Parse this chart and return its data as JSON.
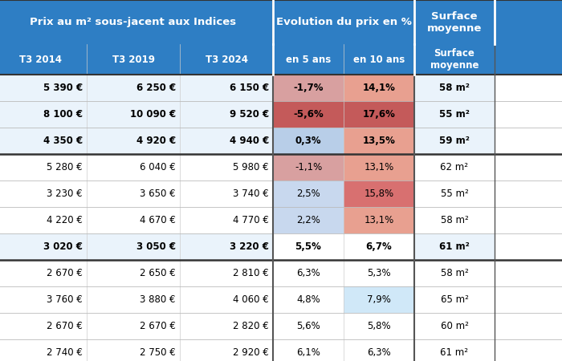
{
  "header1": "Prix au m² sous-jacent aux Indices",
  "header2": "Evolution du prix en %",
  "header3": "Surface\nmoyenne",
  "rows": [
    {
      "prix": [
        "5 390 €",
        "6 250 €",
        "6 150 €"
      ],
      "ev5": "-1,7%",
      "ev10": "14,1%",
      "surface": "58 m²",
      "bold": true
    },
    {
      "prix": [
        "8 100 €",
        "10 090 €",
        "9 520 €"
      ],
      "ev5": "-5,6%",
      "ev10": "17,6%",
      "surface": "55 m²",
      "bold": true
    },
    {
      "prix": [
        "4 350 €",
        "4 920 €",
        "4 940 €"
      ],
      "ev5": "0,3%",
      "ev10": "13,5%",
      "surface": "59 m²",
      "bold": true
    },
    {
      "prix": [
        "5 280 €",
        "6 040 €",
        "5 980 €"
      ],
      "ev5": "-1,1%",
      "ev10": "13,1%",
      "surface": "62 m²",
      "bold": false
    },
    {
      "prix": [
        "3 230 €",
        "3 650 €",
        "3 740 €"
      ],
      "ev5": "2,5%",
      "ev10": "15,8%",
      "surface": "55 m²",
      "bold": false
    },
    {
      "prix": [
        "4 220 €",
        "4 670 €",
        "4 770 €"
      ],
      "ev5": "2,2%",
      "ev10": "13,1%",
      "surface": "58 m²",
      "bold": false
    },
    {
      "prix": [
        "3 020 €",
        "3 050 €",
        "3 220 €"
      ],
      "ev5": "5,5%",
      "ev10": "6,7%",
      "surface": "61 m²",
      "bold": true
    },
    {
      "prix": [
        "2 670 €",
        "2 650 €",
        "2 810 €"
      ],
      "ev5": "6,3%",
      "ev10": "5,3%",
      "surface": "58 m²",
      "bold": false
    },
    {
      "prix": [
        "3 760 €",
        "3 880 €",
        "4 060 €"
      ],
      "ev5": "4,8%",
      "ev10": "7,9%",
      "surface": "65 m²",
      "bold": false
    },
    {
      "prix": [
        "2 670 €",
        "2 670 €",
        "2 820 €"
      ],
      "ev5": "5,6%",
      "ev10": "5,8%",
      "surface": "60 m²",
      "bold": false
    },
    {
      "prix": [
        "2 740 €",
        "2 750 €",
        "2 920 €"
      ],
      "ev5": "6,1%",
      "ev10": "6,3%",
      "surface": "61 m²",
      "bold": false
    }
  ],
  "separator_rows": [
    2,
    6
  ],
  "header_bg": "#2E7EC4",
  "header_text": "#FFFFFF",
  "ev5_vals": [
    -1.7,
    -5.6,
    0.3,
    -1.1,
    2.5,
    2.2,
    5.5,
    6.3,
    4.8,
    5.6,
    6.1
  ],
  "ev10_vals": [
    14.1,
    17.6,
    13.5,
    13.1,
    15.8,
    13.1,
    6.7,
    5.3,
    7.9,
    5.8,
    6.3
  ]
}
